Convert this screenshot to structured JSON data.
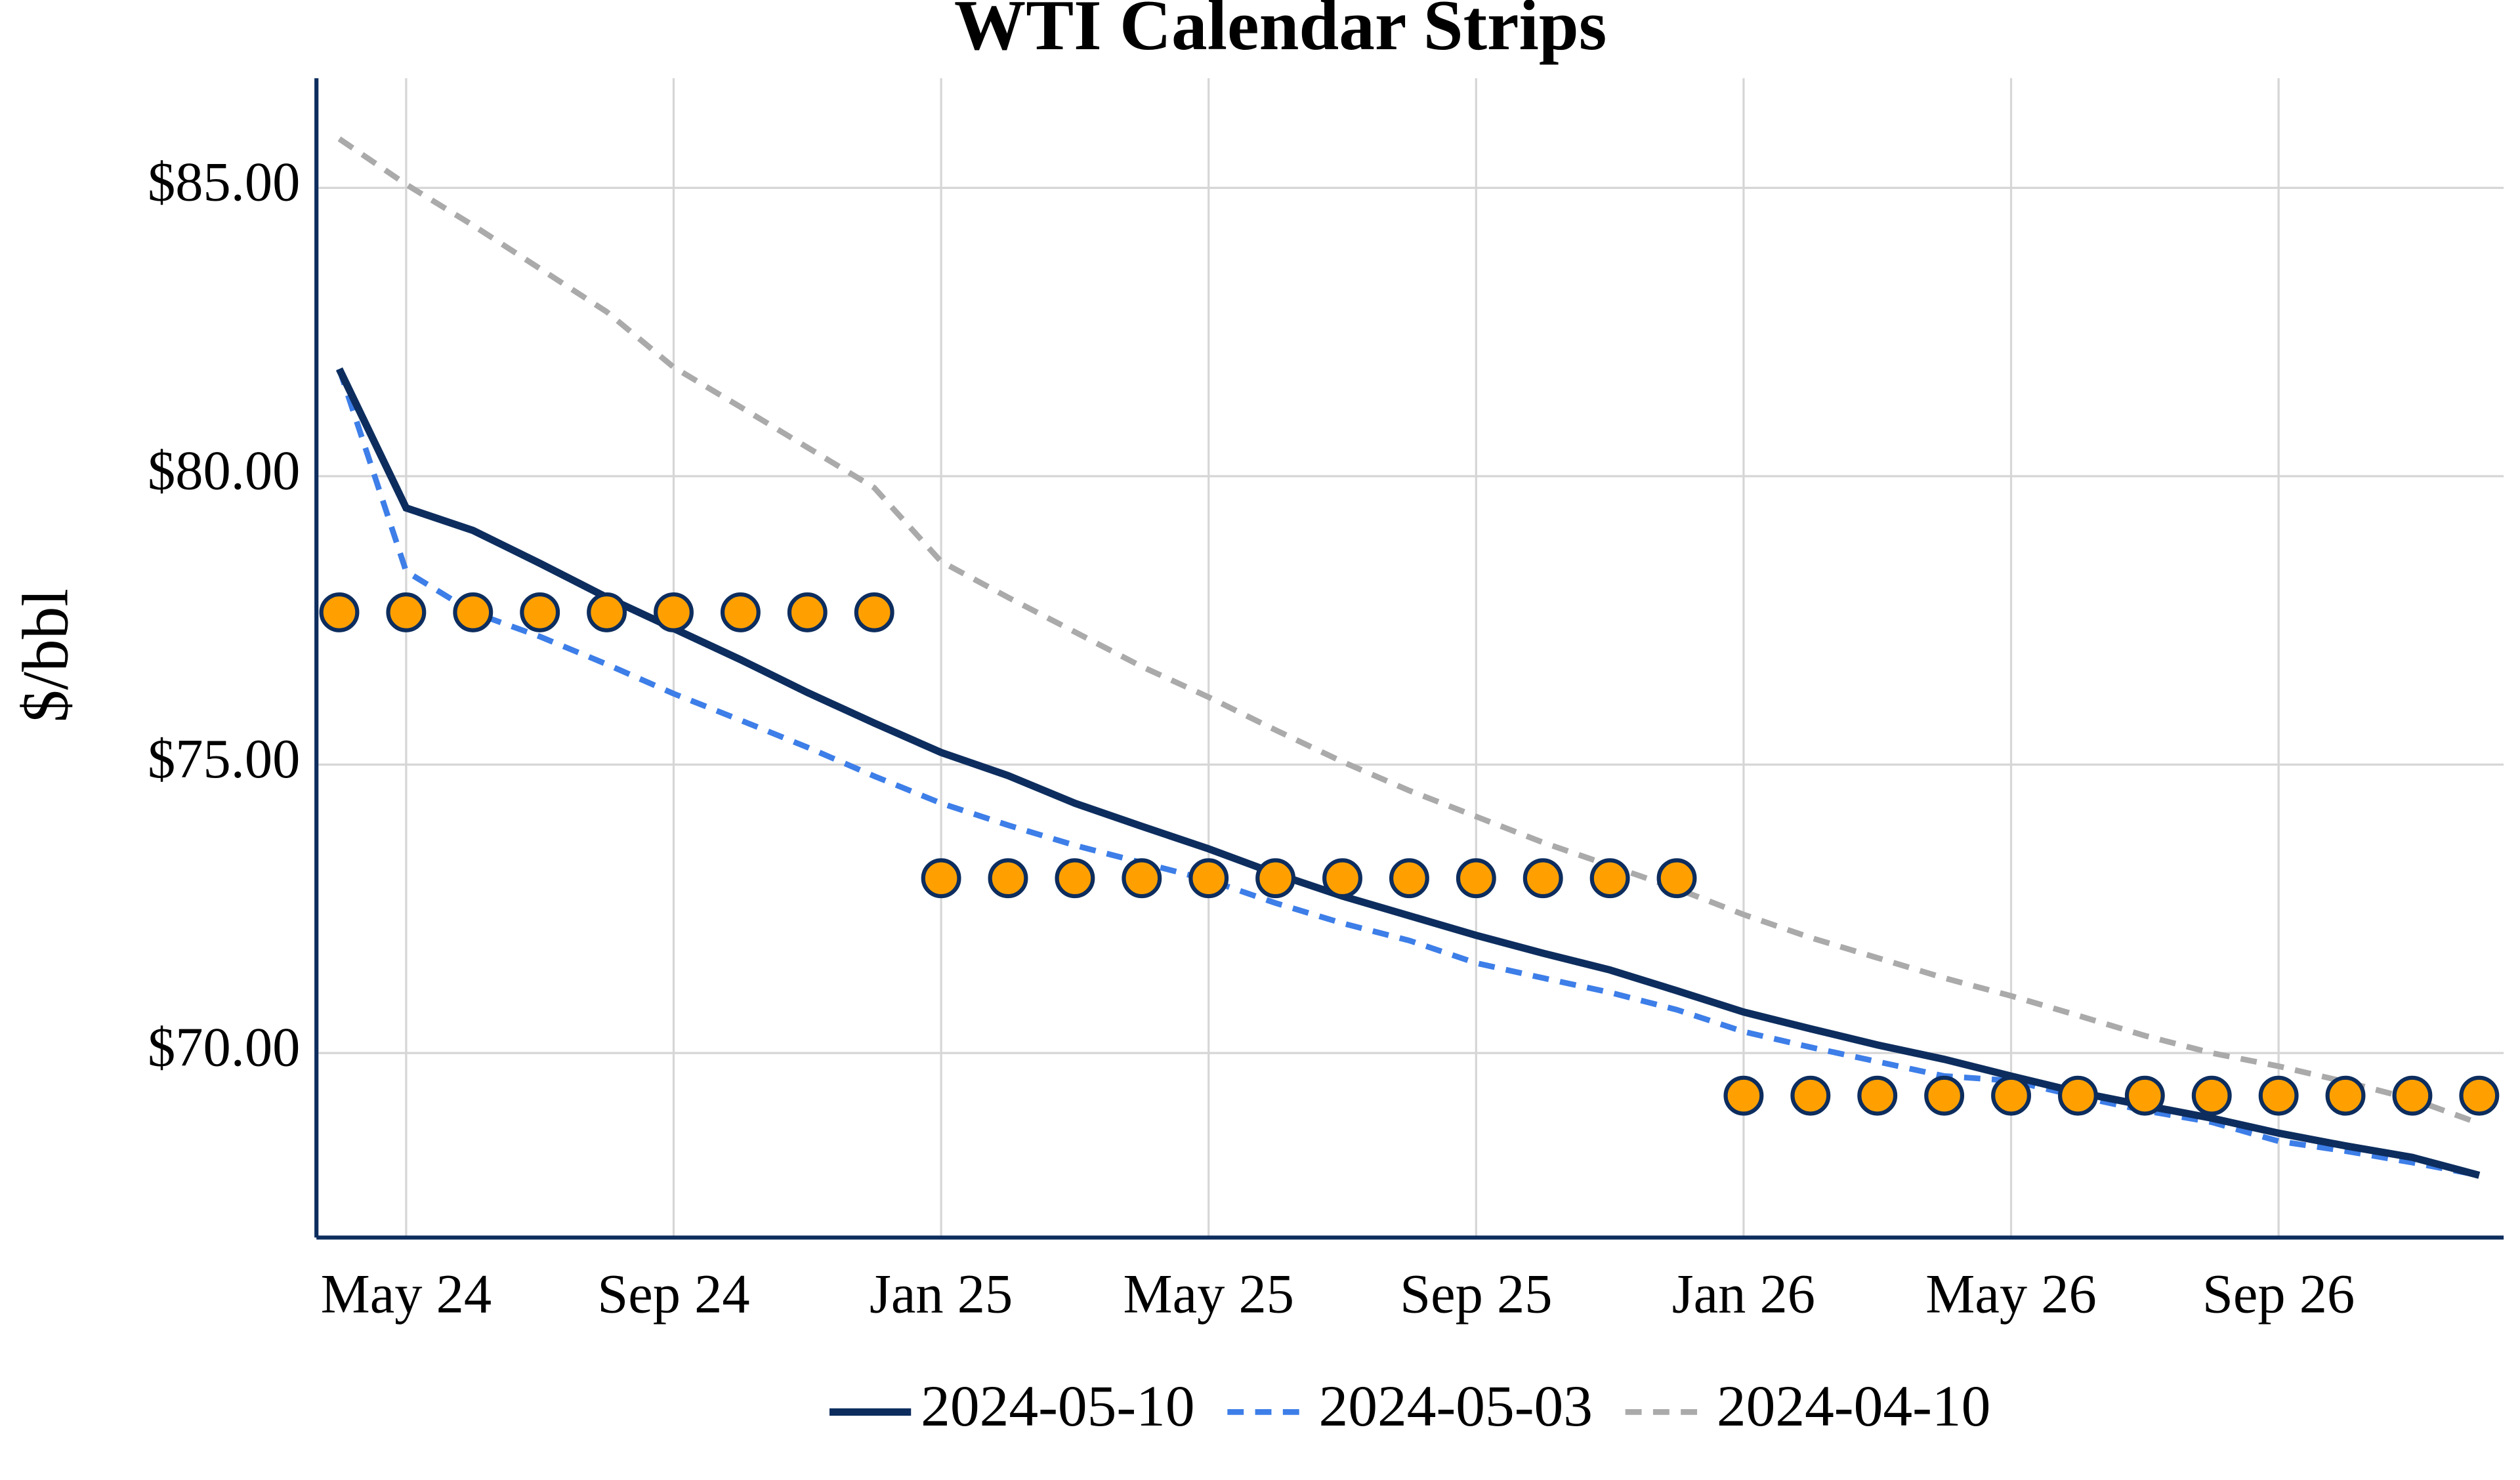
{
  "chart_data": {
    "type": "line",
    "title": "WTI Calendar Strips",
    "y_label": "$/bbl",
    "x": [
      "2024-04",
      "2024-05",
      "2024-06",
      "2024-07",
      "2024-08",
      "2024-09",
      "2024-10",
      "2024-11",
      "2024-12",
      "2025-01",
      "2025-02",
      "2025-03",
      "2025-04",
      "2025-05",
      "2025-06",
      "2025-07",
      "2025-08",
      "2025-09",
      "2025-10",
      "2025-11",
      "2025-12",
      "2026-01",
      "2026-02",
      "2026-03",
      "2026-04",
      "2026-05",
      "2026-06",
      "2026-07",
      "2026-08",
      "2026-09",
      "2026-10",
      "2026-11",
      "2026-12"
    ],
    "series": [
      {
        "name": "2024-05-10",
        "color": "#0d2d5e",
        "dash": "solid",
        "values": [
          81.86,
          79.45,
          79.06,
          78.49,
          77.9,
          77.36,
          76.82,
          76.25,
          75.72,
          75.21,
          74.81,
          74.33,
          73.93,
          73.54,
          73.11,
          72.72,
          72.38,
          72.04,
          71.73,
          71.44,
          71.08,
          70.71,
          70.42,
          70.14,
          69.89,
          69.6,
          69.32,
          69.09,
          68.87,
          68.61,
          68.39,
          68.19,
          67.88
        ]
      },
      {
        "name": "2024-05-03",
        "color": "#3d7ee8",
        "dash": "dashed",
        "values": [
          81.86,
          78.35,
          77.64,
          77.22,
          76.74,
          76.23,
          75.77,
          75.3,
          74.8,
          74.33,
          73.95,
          73.6,
          73.3,
          73.0,
          72.6,
          72.25,
          71.95,
          71.56,
          71.3,
          71.05,
          70.75,
          70.37,
          70.1,
          69.85,
          69.6,
          69.52,
          69.25,
          69.0,
          68.8,
          68.47,
          68.3,
          68.1,
          67.88
        ]
      },
      {
        "name": "2024-04-10",
        "color": "#aaaaaa",
        "dash": "dashed",
        "values": [
          85.85,
          85.06,
          84.35,
          83.6,
          82.85,
          81.89,
          81.2,
          80.5,
          79.8,
          78.52,
          77.9,
          77.3,
          76.7,
          76.17,
          75.6,
          75.05,
          74.55,
          74.1,
          73.65,
          73.25,
          72.85,
          72.4,
          72.0,
          71.65,
          71.3,
          70.99,
          70.65,
          70.3,
          70.0,
          69.77,
          69.5,
          69.2,
          68.78
        ]
      }
    ],
    "markers": {
      "color": "#ffa000",
      "edge_color": "#0d2d5e",
      "values": [
        77.64,
        77.64,
        77.64,
        77.64,
        77.64,
        77.64,
        77.64,
        77.64,
        77.64,
        73.03,
        73.03,
        73.03,
        73.03,
        73.03,
        73.03,
        73.03,
        73.03,
        73.03,
        73.03,
        73.03,
        73.03,
        69.26,
        69.26,
        69.26,
        69.26,
        69.26,
        69.26,
        69.26,
        69.26,
        69.26,
        69.26,
        69.26,
        69.26
      ]
    },
    "xlim": [
      "2024-04",
      "2026-12"
    ],
    "xticks": [
      {
        "value": "2024-05",
        "label": "May 24"
      },
      {
        "value": "2024-09",
        "label": "Sep 24"
      },
      {
        "value": "2025-01",
        "label": "Jan 25"
      },
      {
        "value": "2025-05",
        "label": "May 25"
      },
      {
        "value": "2025-09",
        "label": "Sep 25"
      },
      {
        "value": "2026-01",
        "label": "Jan 26"
      },
      {
        "value": "2026-05",
        "label": "May 26"
      },
      {
        "value": "2026-09",
        "label": "Sep 26"
      }
    ],
    "ylim": [
      66.8,
      86.9
    ],
    "yticks": [
      {
        "value": 70,
        "label": "$70.00"
      },
      {
        "value": 75,
        "label": "$75.00"
      },
      {
        "value": 80,
        "label": "$80.00"
      },
      {
        "value": 85,
        "label": "$85.00"
      }
    ],
    "grid": true,
    "legend": "bottom"
  }
}
